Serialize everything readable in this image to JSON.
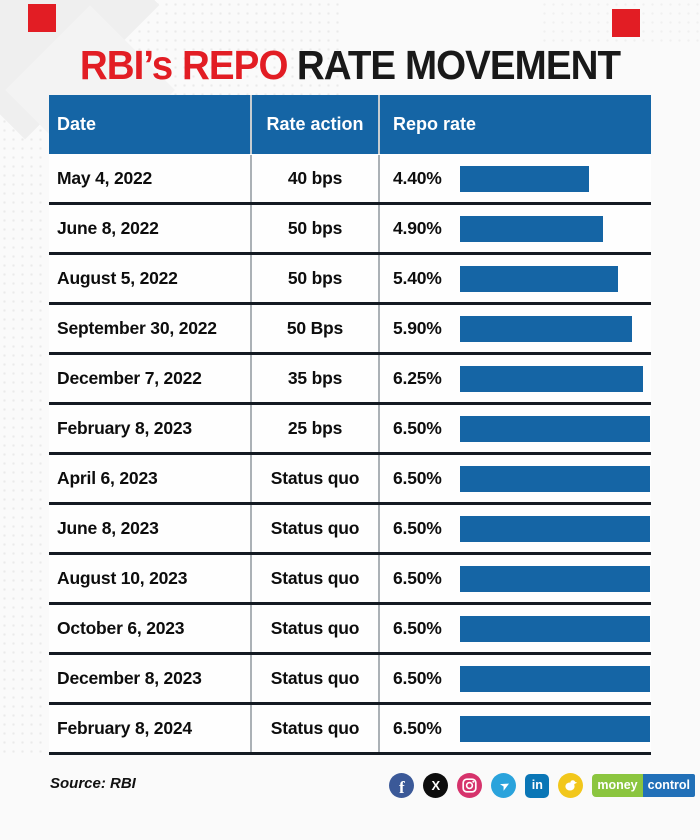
{
  "title": {
    "highlight": "RBI’s REPO",
    "rest": "RATE MOVEMENT"
  },
  "table": {
    "columns": [
      "Date",
      "Rate action",
      "Repo rate"
    ],
    "rows": [
      {
        "date": "May 4, 2022",
        "action": "40 bps",
        "rate": "4.40%",
        "rate_value": 4.4
      },
      {
        "date": "June 8, 2022",
        "action": "50 bps",
        "rate": "4.90%",
        "rate_value": 4.9
      },
      {
        "date": "August 5, 2022",
        "action": "50 bps",
        "rate": "5.40%",
        "rate_value": 5.4
      },
      {
        "date": "September 30, 2022",
        "action": "50 Bps",
        "rate": "5.90%",
        "rate_value": 5.9
      },
      {
        "date": "December 7, 2022",
        "action": "35 bps",
        "rate": "6.25%",
        "rate_value": 6.25
      },
      {
        "date": "February 8, 2023",
        "action": "25 bps",
        "rate": "6.50%",
        "rate_value": 6.5
      },
      {
        "date": "April 6, 2023",
        "action": "Status quo",
        "rate": "6.50%",
        "rate_value": 6.5
      },
      {
        "date": "June 8, 2023",
        "action": "Status quo",
        "rate": "6.50%",
        "rate_value": 6.5
      },
      {
        "date": "August 10, 2023",
        "action": "Status quo",
        "rate": "6.50%",
        "rate_value": 6.5
      },
      {
        "date": "October 6, 2023",
        "action": "Status quo",
        "rate": "6.50%",
        "rate_value": 6.5
      },
      {
        "date": "December 8, 2023",
        "action": "Status quo",
        "rate": "6.50%",
        "rate_value": 6.5
      },
      {
        "date": "February 8, 2024",
        "action": "Status quo",
        "rate": "6.50%",
        "rate_value": 6.5
      }
    ],
    "bar_max_value": 6.5
  },
  "chart_data": {
    "type": "bar",
    "orientation": "horizontal",
    "title": "RBI’s REPO RATE MOVEMENT",
    "categories": [
      "May 4, 2022",
      "June 8, 2022",
      "August 5, 2022",
      "September 30, 2022",
      "December 7, 2022",
      "February 8, 2023",
      "April 6, 2023",
      "June 8, 2023",
      "August 10, 2023",
      "October 6, 2023",
      "December 8, 2023",
      "February 8, 2024"
    ],
    "series": [
      {
        "name": "Repo rate (%)",
        "values": [
          4.4,
          4.9,
          5.4,
          5.9,
          6.25,
          6.5,
          6.5,
          6.5,
          6.5,
          6.5,
          6.5,
          6.5
        ]
      }
    ],
    "rate_actions": [
      "40 bps",
      "50 bps",
      "50 bps",
      "50 Bps",
      "35 bps",
      "25 bps",
      "Status quo",
      "Status quo",
      "Status quo",
      "Status quo",
      "Status quo",
      "Status quo"
    ],
    "value_labels": [
      "4.40%",
      "4.90%",
      "5.40%",
      "5.90%",
      "6.25%",
      "6.50%",
      "6.50%",
      "6.50%",
      "6.50%",
      "6.50%",
      "6.50%",
      "6.50%"
    ],
    "xlim": [
      0,
      6.5
    ],
    "grid": false,
    "legend": false,
    "source": "RBI"
  },
  "footer": {
    "source": "Source: RBI",
    "social": [
      {
        "name": "facebook",
        "color": "#3b5998",
        "glyph": "f"
      },
      {
        "name": "x-twitter",
        "color": "#0d0d0d",
        "glyph": "X"
      },
      {
        "name": "instagram",
        "color": "#d6336c",
        "glyph": ""
      },
      {
        "name": "telegram",
        "color": "#2aa3dc",
        "glyph": "➤"
      },
      {
        "name": "linkedin",
        "color": "#0a76b6",
        "glyph": "in"
      },
      {
        "name": "koo",
        "color": "#f2c71b",
        "glyph": ""
      }
    ],
    "brand": {
      "money": "money",
      "control": "control",
      "money_bg": "#8bc53f",
      "control_bg": "#2170b8"
    }
  },
  "colors": {
    "accent_red": "#e21d24",
    "table_blue": "#1565a5",
    "bar_blue": "#1565a5",
    "row_border": "#141a22",
    "separator": "#abb1b6",
    "title_dark": "#191919"
  }
}
